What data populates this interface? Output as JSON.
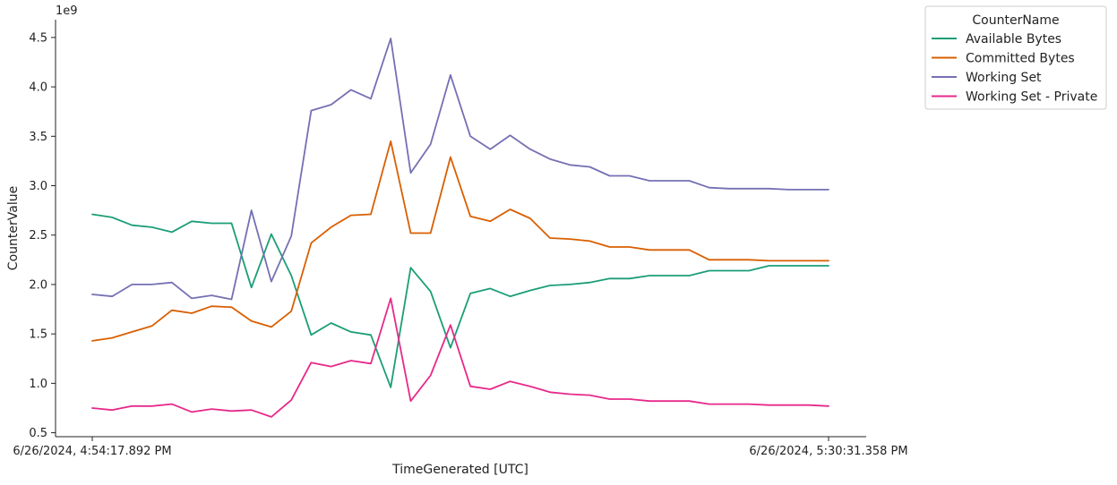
{
  "chart_data": {
    "type": "line",
    "xlabel": "TimeGenerated [UTC]",
    "ylabel": "CounterValue",
    "y_multiplier_label": "1e9",
    "x_tick_labels": [
      "6/26/2024, 4:54:17.892 PM",
      "6/26/2024, 5:30:31.358 PM"
    ],
    "y_ticks": [
      0.5,
      1.0,
      1.5,
      2.0,
      2.5,
      3.0,
      3.5,
      4.0,
      4.5
    ],
    "y_tick_labels": [
      "0.5",
      "1.0",
      "1.5",
      "2.0",
      "2.5",
      "3.0",
      "3.5",
      "4.0",
      "4.5"
    ],
    "ylim": [
      0.46,
      4.68
    ],
    "grid": false,
    "legend": {
      "title": "CounterName",
      "placement": "outside-top-right"
    },
    "series": [
      {
        "name": "Available Bytes",
        "color": "#1b9e77",
        "values": [
          2.71,
          2.68,
          2.6,
          2.58,
          2.53,
          2.64,
          2.62,
          2.62,
          1.97,
          2.51,
          2.09,
          1.49,
          1.61,
          1.52,
          1.49,
          0.96,
          2.17,
          1.93,
          1.36,
          1.91,
          1.96,
          1.88,
          1.94,
          1.99,
          2.0,
          2.02,
          2.06,
          2.06,
          2.09,
          2.09,
          2.09,
          2.14,
          2.14,
          2.14,
          2.19,
          2.19,
          2.19,
          2.19
        ]
      },
      {
        "name": "Committed Bytes",
        "color": "#d95f02",
        "values": [
          1.43,
          1.46,
          1.52,
          1.58,
          1.74,
          1.71,
          1.78,
          1.77,
          1.63,
          1.57,
          1.73,
          2.42,
          2.58,
          2.7,
          2.71,
          3.45,
          2.52,
          2.52,
          3.29,
          2.69,
          2.64,
          2.76,
          2.67,
          2.47,
          2.46,
          2.44,
          2.38,
          2.38,
          2.35,
          2.35,
          2.35,
          2.25,
          2.25,
          2.25,
          2.24,
          2.24,
          2.24,
          2.24
        ]
      },
      {
        "name": "Working Set",
        "color": "#7570b3",
        "values": [
          1.9,
          1.88,
          2.0,
          2.0,
          2.02,
          1.86,
          1.89,
          1.85,
          2.75,
          2.03,
          2.49,
          3.76,
          3.82,
          3.97,
          3.88,
          4.49,
          3.13,
          3.42,
          4.12,
          3.5,
          3.37,
          3.51,
          3.37,
          3.27,
          3.21,
          3.19,
          3.1,
          3.1,
          3.05,
          3.05,
          3.05,
          2.98,
          2.97,
          2.97,
          2.97,
          2.96,
          2.96,
          2.96
        ]
      },
      {
        "name": "Working Set - Private",
        "color": "#e7298a",
        "values": [
          0.75,
          0.73,
          0.77,
          0.77,
          0.79,
          0.71,
          0.74,
          0.72,
          0.73,
          0.66,
          0.83,
          1.21,
          1.17,
          1.23,
          1.2,
          1.86,
          0.82,
          1.08,
          1.59,
          0.97,
          0.94,
          1.02,
          0.97,
          0.91,
          0.89,
          0.88,
          0.84,
          0.84,
          0.82,
          0.82,
          0.82,
          0.79,
          0.79,
          0.79,
          0.78,
          0.78,
          0.78,
          0.77
        ]
      }
    ]
  }
}
